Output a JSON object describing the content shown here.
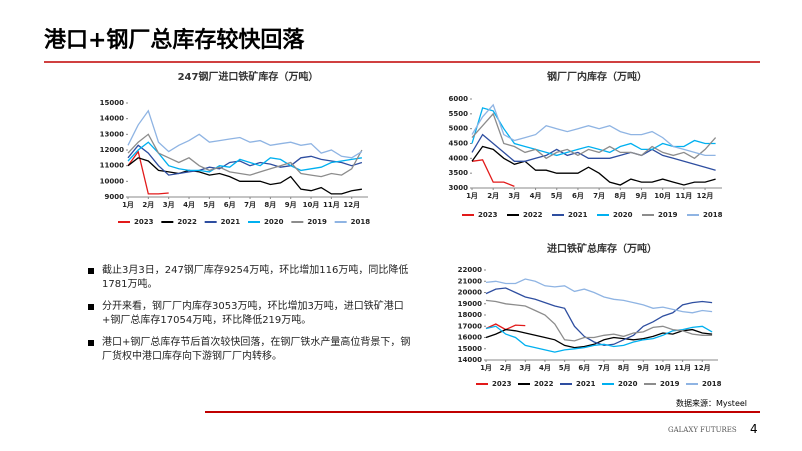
{
  "header": {
    "title": "港口+钢厂总库存较快回落"
  },
  "bullets": [
    "截止3月3日，247钢厂库存9254万吨，环比增加116万吨，同比降低1781万吨。",
    "分开来看，钢厂厂内库存3053万吨，环比增加3万吨，进口铁矿港口+钢厂总库存17054万吨，环比降低219万吨。",
    "港口+钢厂总库存节后首次较快回落，在钢厂铁水产量高位背景下，钢厂货权中港口库存向下游钢厂厂内转移。"
  ],
  "source": "数据来源：Mysteel",
  "footer": {
    "brand": "GALAXY FUTURES",
    "page": "4"
  },
  "chart_data": [
    {
      "type": "line",
      "title": "247钢厂进口铁矿库存（万吨）",
      "x": [
        1,
        1.5,
        2,
        2.5,
        3,
        3.5,
        4,
        4.5,
        5,
        5.5,
        6,
        6.5,
        7,
        7.5,
        8,
        8.5,
        9,
        9.5,
        10,
        10.5,
        11,
        11.5,
        12,
        12.5
      ],
      "xlim": [
        1,
        12.8
      ],
      "xticks": [
        {
          "value": 1,
          "label": "1月"
        },
        {
          "value": 2,
          "label": "2月"
        },
        {
          "value": 3,
          "label": "3月"
        },
        {
          "value": 4,
          "label": "4月"
        },
        {
          "value": 5,
          "label": "5月"
        },
        {
          "value": 6,
          "label": "6月"
        },
        {
          "value": 7,
          "label": "7月"
        },
        {
          "value": 8,
          "label": "8月"
        },
        {
          "value": 9,
          "label": "9月"
        },
        {
          "value": 10,
          "label": "10月"
        },
        {
          "value": 11,
          "label": "11月"
        },
        {
          "value": 12,
          "label": "12月"
        }
      ],
      "ylim": [
        9000,
        15000
      ],
      "yticks": [
        9000,
        10000,
        11000,
        12000,
        13000,
        14000,
        15000
      ],
      "series": [
        {
          "name": "2023",
          "color": "#e21a1a",
          "values": [
            11000,
            11900,
            9200,
            9200,
            9254,
            null,
            null,
            null,
            null,
            null,
            null,
            null,
            null,
            null,
            null,
            null,
            null,
            null,
            null,
            null,
            null,
            null,
            null,
            null
          ]
        },
        {
          "name": "2022",
          "color": "#000000",
          "values": [
            11000,
            11500,
            11300,
            10700,
            10600,
            10500,
            10700,
            10600,
            10400,
            10500,
            10300,
            10000,
            10000,
            10000,
            9800,
            9900,
            10300,
            9500,
            9400,
            9600,
            9200,
            9200,
            9400,
            9500
          ]
        },
        {
          "name": "2021",
          "color": "#2e4ea0",
          "values": [
            11500,
            12300,
            11800,
            11000,
            10400,
            10500,
            10600,
            10700,
            10900,
            10800,
            11200,
            11300,
            11000,
            11200,
            11100,
            10900,
            11000,
            11500,
            11600,
            11400,
            11300,
            11200,
            11000,
            11200
          ]
        },
        {
          "name": "2020",
          "color": "#00b0f0",
          "values": [
            11300,
            12000,
            12500,
            11800,
            11000,
            10800,
            10700,
            10700,
            10600,
            11000,
            10900,
            11400,
            11200,
            11000,
            11500,
            11400,
            11000,
            10700,
            10800,
            10900,
            11200,
            11300,
            11400,
            11500
          ]
        },
        {
          "name": "2019",
          "color": "#8c8c8c",
          "values": [
            11800,
            12500,
            13000,
            11800,
            11500,
            11200,
            11500,
            11000,
            10700,
            10900,
            10600,
            10500,
            10400,
            10600,
            10800,
            11000,
            11200,
            10500,
            10400,
            10300,
            10500,
            10400,
            10800,
            12000
          ]
        },
        {
          "name": "2018",
          "color": "#8fb4e3",
          "values": [
            12300,
            13600,
            14500,
            12500,
            11900,
            12300,
            12600,
            13000,
            12500,
            12600,
            12700,
            12800,
            12500,
            12600,
            12300,
            12400,
            12500,
            12300,
            12400,
            11800,
            12000,
            11600,
            11500,
            11900
          ]
        }
      ]
    },
    {
      "type": "line",
      "title": "钢厂厂内库存（万吨）",
      "x": [
        1,
        1.5,
        2,
        2.5,
        3,
        3.5,
        4,
        4.5,
        5,
        5.5,
        6,
        6.5,
        7,
        7.5,
        8,
        8.5,
        9,
        9.5,
        10,
        10.5,
        11,
        11.5,
        12,
        12.5
      ],
      "xlim": [
        1,
        12.8
      ],
      "xticks": [
        {
          "value": 1,
          "label": "1月"
        },
        {
          "value": 2,
          "label": "2月"
        },
        {
          "value": 3,
          "label": "3月"
        },
        {
          "value": 4,
          "label": "4月"
        },
        {
          "value": 5,
          "label": "5月"
        },
        {
          "value": 6,
          "label": "6月"
        },
        {
          "value": 7,
          "label": "7月"
        },
        {
          "value": 8,
          "label": "8月"
        },
        {
          "value": 9,
          "label": "9月"
        },
        {
          "value": 10,
          "label": "10月"
        },
        {
          "value": 11,
          "label": "11月"
        },
        {
          "value": 12,
          "label": "12月"
        }
      ],
      "ylim": [
        3000,
        6000
      ],
      "yticks": [
        3000,
        3500,
        4000,
        4500,
        5000,
        5500,
        6000
      ],
      "series": [
        {
          "name": "2023",
          "color": "#e21a1a",
          "values": [
            3900,
            3950,
            3200,
            3200,
            3053,
            null,
            null,
            null,
            null,
            null,
            null,
            null,
            null,
            null,
            null,
            null,
            null,
            null,
            null,
            null,
            null,
            null,
            null,
            null
          ]
        },
        {
          "name": "2022",
          "color": "#000000",
          "values": [
            3900,
            4400,
            4300,
            4000,
            3800,
            3900,
            3600,
            3600,
            3500,
            3500,
            3500,
            3700,
            3500,
            3200,
            3100,
            3300,
            3200,
            3200,
            3300,
            3200,
            3100,
            3200,
            3200,
            3300
          ]
        },
        {
          "name": "2021",
          "color": "#2e4ea0",
          "values": [
            4200,
            4800,
            4500,
            4200,
            3900,
            3900,
            4000,
            4100,
            4300,
            4100,
            4200,
            4000,
            4000,
            4000,
            4100,
            4200,
            4100,
            4300,
            4100,
            4000,
            3900,
            3800,
            3700,
            3600
          ]
        },
        {
          "name": "2020",
          "color": "#00b0f0",
          "values": [
            4500,
            5700,
            5600,
            5000,
            4500,
            4400,
            4300,
            4200,
            4100,
            4200,
            4300,
            4400,
            4300,
            4200,
            4400,
            4500,
            4300,
            4300,
            4500,
            4400,
            4400,
            4600,
            4500,
            4500
          ]
        },
        {
          "name": "2019",
          "color": "#8c8c8c",
          "values": [
            4700,
            5100,
            5500,
            4500,
            4400,
            4200,
            4300,
            4000,
            4200,
            4300,
            4100,
            4300,
            4200,
            4400,
            4200,
            4200,
            4100,
            4400,
            4200,
            4100,
            4200,
            4000,
            4300,
            4700
          ]
        },
        {
          "name": "2018",
          "color": "#8fb4e3",
          "values": [
            4800,
            5400,
            5800,
            4800,
            4600,
            4700,
            4800,
            5100,
            5000,
            4900,
            5000,
            5100,
            5000,
            5100,
            4900,
            4800,
            4800,
            4900,
            4700,
            4400,
            4300,
            4200,
            4100,
            4100
          ]
        }
      ]
    },
    {
      "type": "line",
      "title": "进口铁矿总库存（万吨）",
      "x": [
        1,
        1.5,
        2,
        2.5,
        3,
        3.5,
        4,
        4.5,
        5,
        5.5,
        6,
        6.5,
        7,
        7.5,
        8,
        8.5,
        9,
        9.5,
        10,
        10.5,
        11,
        11.5,
        12,
        12.5
      ],
      "xlim": [
        1,
        12.8
      ],
      "xticks": [
        {
          "value": 1,
          "label": "1月"
        },
        {
          "value": 2,
          "label": "2月"
        },
        {
          "value": 3,
          "label": "3月"
        },
        {
          "value": 4,
          "label": "4月"
        },
        {
          "value": 5,
          "label": "5月"
        },
        {
          "value": 6,
          "label": "6月"
        },
        {
          "value": 7,
          "label": "7月"
        },
        {
          "value": 8,
          "label": "8月"
        },
        {
          "value": 9,
          "label": "9月"
        },
        {
          "value": 10,
          "label": "10月"
        },
        {
          "value": 11,
          "label": "11月"
        },
        {
          "value": 12,
          "label": "12月"
        }
      ],
      "ylim": [
        14000,
        22000
      ],
      "yticks": [
        14000,
        15000,
        16000,
        17000,
        18000,
        19000,
        20000,
        21000,
        22000
      ],
      "series": [
        {
          "name": "2023",
          "color": "#e21a1a",
          "values": [
            16800,
            17200,
            16700,
            17100,
            17054,
            null,
            null,
            null,
            null,
            null,
            null,
            null,
            null,
            null,
            null,
            null,
            null,
            null,
            null,
            null,
            null,
            null,
            null,
            null
          ]
        },
        {
          "name": "2022",
          "color": "#000000",
          "values": [
            16000,
            16300,
            16700,
            16600,
            16400,
            16200,
            16000,
            15800,
            15300,
            15100,
            15200,
            15400,
            15800,
            16000,
            15900,
            15800,
            15900,
            16100,
            16400,
            16300,
            16600,
            16700,
            16400,
            16300
          ]
        },
        {
          "name": "2021",
          "color": "#2e4ea0",
          "values": [
            19900,
            20300,
            20400,
            20000,
            19600,
            19400,
            19100,
            18800,
            18600,
            17000,
            16100,
            15600,
            15300,
            15400,
            15800,
            16200,
            17000,
            17400,
            17900,
            18200,
            18900,
            19100,
            19200,
            19100
          ]
        },
        {
          "name": "2020",
          "color": "#00b0f0",
          "values": [
            16800,
            17000,
            16300,
            16000,
            15300,
            15100,
            14900,
            14700,
            14900,
            15000,
            15100,
            15300,
            15400,
            15200,
            15300,
            15600,
            15800,
            15900,
            16200,
            16600,
            16700,
            16900,
            17000,
            16500
          ]
        },
        {
          "name": "2019",
          "color": "#8c8c8c",
          "values": [
            19300,
            19200,
            19000,
            18900,
            18800,
            18400,
            18000,
            17200,
            15800,
            15700,
            16000,
            16000,
            16200,
            16300,
            16100,
            16400,
            16500,
            16900,
            17000,
            16700,
            16600,
            16300,
            16200,
            16200
          ]
        },
        {
          "name": "2018",
          "color": "#8fb4e3",
          "values": [
            20900,
            21000,
            20800,
            20800,
            21200,
            21000,
            20600,
            20500,
            20600,
            20100,
            20300,
            20000,
            19600,
            19400,
            19300,
            19100,
            18900,
            18600,
            18700,
            18500,
            18300,
            18200,
            18400,
            18300
          ]
        }
      ]
    }
  ]
}
